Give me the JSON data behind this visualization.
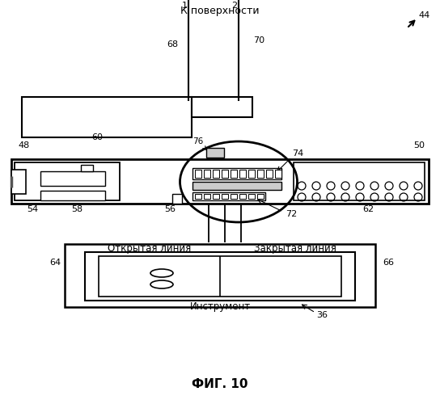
{
  "title": "ФИГ. 10",
  "label_to_surface": "К поверхности",
  "label_open_line": "Открытая линия",
  "label_closed_line": "Закрытая линия",
  "label_instrument": "Инструмент",
  "bg_color": "#ffffff",
  "line_color": "#000000"
}
